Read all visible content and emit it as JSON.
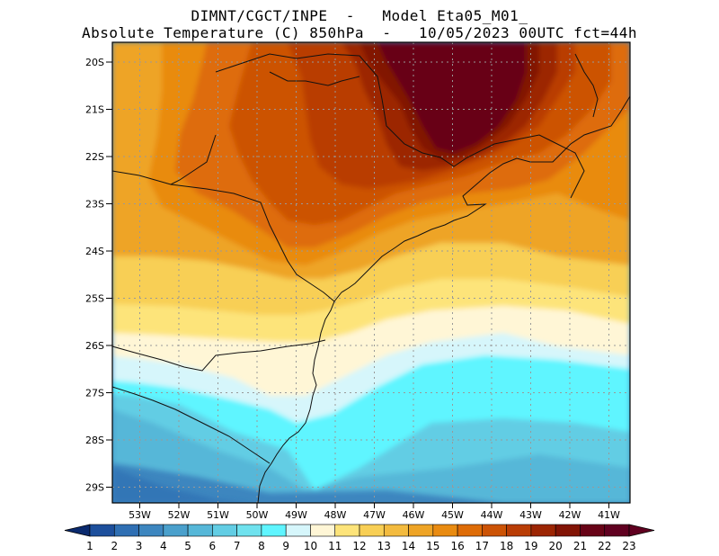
{
  "header": {
    "line1": "DIMNT/CGCT/INPE  -   Model Eta05_M01_",
    "line2": "Absolute Temperature (C) 850hPa  -   10/05/2023 00UTC fct=44h"
  },
  "map": {
    "region": "Southeastern and Southern Brazil",
    "lat_labels": [
      "20S",
      "21S",
      "22S",
      "23S",
      "24S",
      "25S",
      "26S",
      "27S",
      "28S",
      "29S"
    ],
    "lon_labels": [
      "53W",
      "52W",
      "51W",
      "50W",
      "49W",
      "48W",
      "47W",
      "46W",
      "45W",
      "44W",
      "43W",
      "42W",
      "41W"
    ],
    "field": "Absolute Temperature (C) 850hPa",
    "bands": [
      {
        "name": "band-23",
        "min_c": 22,
        "max_c": 23
      },
      {
        "name": "band-20",
        "min_c": 19,
        "max_c": 22
      },
      {
        "name": "band-18",
        "min_c": 17,
        "max_c": 19
      },
      {
        "name": "band-16",
        "min_c": 15,
        "max_c": 17
      },
      {
        "name": "band-14",
        "min_c": 13,
        "max_c": 15
      },
      {
        "name": "band-12",
        "min_c": 11,
        "max_c": 13
      },
      {
        "name": "band-11",
        "min_c": 10,
        "max_c": 11
      },
      {
        "name": "band-10",
        "min_c": 9,
        "max_c": 10
      },
      {
        "name": "band-8",
        "min_c": 7,
        "max_c": 9
      },
      {
        "name": "band-6",
        "min_c": 5,
        "max_c": 7
      }
    ]
  },
  "colorbar": {
    "labels": [
      "1",
      "2",
      "3",
      "4",
      "5",
      "6",
      "7",
      "8",
      "9",
      "10",
      "11",
      "12",
      "13",
      "14",
      "15",
      "16",
      "17",
      "18",
      "19",
      "20",
      "21",
      "22",
      "23"
    ],
    "colors": [
      "#0a2a6e",
      "#1d4f9c",
      "#2f6fb3",
      "#3d86bf",
      "#4aa0cc",
      "#56b7d8",
      "#62cde4",
      "#6fe2ee",
      "#5ff5ff",
      "#d6f6fb",
      "#fff6d6",
      "#fde47a",
      "#f8cf55",
      "#f3bb3f",
      "#eea426",
      "#e98b11",
      "#de6c07",
      "#cc5305",
      "#b93d05",
      "#9c2503",
      "#821405",
      "#680317",
      "#600020"
    ]
  }
}
